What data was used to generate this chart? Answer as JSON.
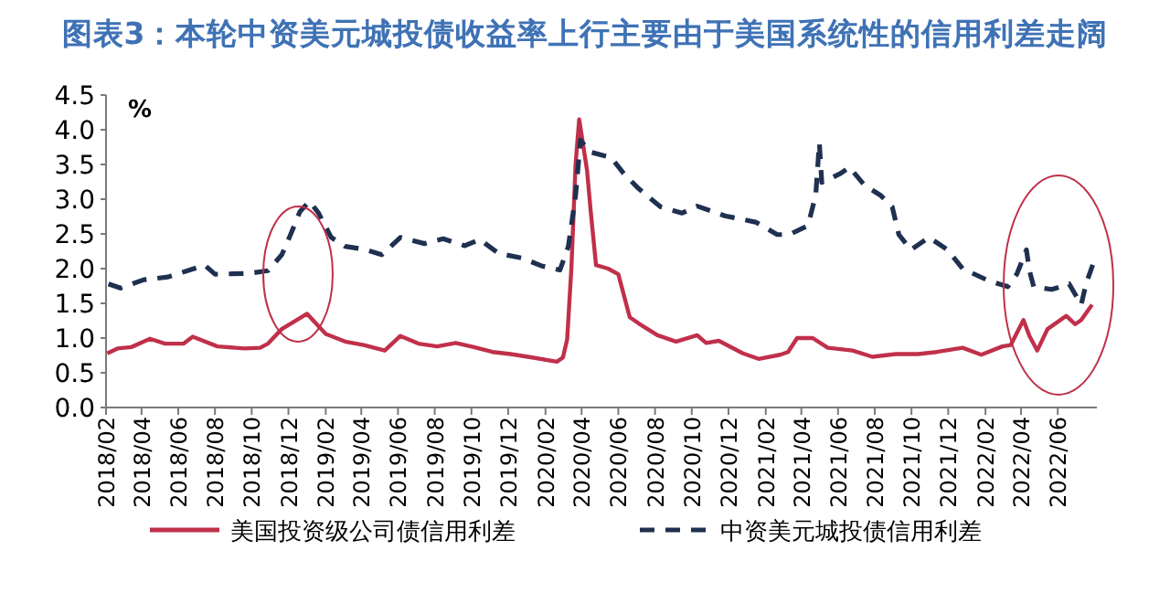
{
  "chart_data": {
    "type": "line",
    "title": "图表3：本轮中资美元城投债收益率上行主要由于美国系统性的信用利差走阔",
    "ylabel": "%",
    "xlim": [
      "2018-02-01",
      "2022-08-05"
    ],
    "ylim": [
      0,
      4.5
    ],
    "xticks": [
      {
        "value": "2018-02",
        "label": "2018/02"
      },
      {
        "value": "2018-04",
        "label": "2018/04"
      },
      {
        "value": "2018-06",
        "label": "2018/06"
      },
      {
        "value": "2018-08",
        "label": "2018/08"
      },
      {
        "value": "2018-10",
        "label": "2018/10"
      },
      {
        "value": "2018-12",
        "label": "2018/12"
      },
      {
        "value": "2019-02",
        "label": "2019/02"
      },
      {
        "value": "2019-04",
        "label": "2019/04"
      },
      {
        "value": "2019-06",
        "label": "2019/06"
      },
      {
        "value": "2019-08",
        "label": "2019/08"
      },
      {
        "value": "2019-10",
        "label": "2019/10"
      },
      {
        "value": "2019-12",
        "label": "2019/12"
      },
      {
        "value": "2020-02",
        "label": "2020/02"
      },
      {
        "value": "2020-04",
        "label": "2020/04"
      },
      {
        "value": "2020-06",
        "label": "2020/06"
      },
      {
        "value": "2020-08",
        "label": "2020/08"
      },
      {
        "value": "2020-10",
        "label": "2020/10"
      },
      {
        "value": "2020-12",
        "label": "2020/12"
      },
      {
        "value": "2021-02",
        "label": "2021/02"
      },
      {
        "value": "2021-04",
        "label": "2021/04"
      },
      {
        "value": "2021-06",
        "label": "2021/06"
      },
      {
        "value": "2021-08",
        "label": "2021/08"
      },
      {
        "value": "2021-10",
        "label": "2021/10"
      },
      {
        "value": "2021-12",
        "label": "2021/12"
      },
      {
        "value": "2022-02",
        "label": "2022/02"
      },
      {
        "value": "2022-04",
        "label": "2022/04"
      },
      {
        "value": "2022-06",
        "label": "2022/06"
      }
    ],
    "yticks": [
      {
        "value": 0,
        "label": "0.0"
      },
      {
        "value": 0.5,
        "label": "0.5"
      },
      {
        "value": 1,
        "label": "1.0"
      },
      {
        "value": 1.5,
        "label": "1.5"
      },
      {
        "value": 2,
        "label": "2.0"
      },
      {
        "value": 2.5,
        "label": "2.5"
      },
      {
        "value": 3,
        "label": "3.0"
      },
      {
        "value": 3.5,
        "label": "3.5"
      },
      {
        "value": 4,
        "label": "4.0"
      },
      {
        "value": 4.5,
        "label": "4.5"
      }
    ],
    "grid": false,
    "legend": "bottom",
    "series": [
      {
        "name": "美国投资级公司债信用利差",
        "color": "#c0304a",
        "line_style": "solid",
        "x": [
          "2018-02-03",
          "2018-02-20",
          "2018-03-15",
          "2018-04-05",
          "2018-04-15",
          "2018-05-10",
          "2018-06-10",
          "2018-06-25",
          "2018-08-05",
          "2018-09-20",
          "2018-10-15",
          "2018-10-28",
          "2018-11-20",
          "2019-01-01",
          "2019-02-01",
          "2019-03-05",
          "2019-04-05",
          "2019-05-10",
          "2019-06-05",
          "2019-07-05",
          "2019-08-05",
          "2019-09-05",
          "2019-10-05",
          "2019-11-05",
          "2019-12-05",
          "2020-01-10",
          "2020-02-20",
          "2020-03-01",
          "2020-03-08",
          "2020-03-15",
          "2020-03-22",
          "2020-03-28",
          "2020-04-10",
          "2020-04-16",
          "2020-04-25",
          "2020-05-15",
          "2020-06-01",
          "2020-06-20",
          "2020-07-05",
          "2020-08-05",
          "2020-09-05",
          "2020-10-10",
          "2020-10-25",
          "2020-11-15",
          "2020-12-25",
          "2021-01-20",
          "2021-02-25",
          "2021-03-10",
          "2021-03-25",
          "2021-04-20",
          "2021-05-15",
          "2021-06-25",
          "2021-07-28",
          "2021-09-05",
          "2021-10-12",
          "2021-11-12",
          "2021-12-25",
          "2022-01-25",
          "2022-03-01",
          "2022-03-15",
          "2022-04-05",
          "2022-04-15",
          "2022-04-28",
          "2022-05-15",
          "2022-06-15",
          "2022-06-30",
          "2022-07-10",
          "2022-07-28"
        ],
        "values": [
          0.78,
          0.85,
          0.87,
          0.95,
          0.99,
          0.92,
          0.92,
          1.02,
          0.88,
          0.85,
          0.86,
          0.92,
          1.13,
          1.35,
          1.06,
          0.95,
          0.9,
          0.82,
          1.03,
          0.92,
          0.88,
          0.93,
          0.87,
          0.8,
          0.77,
          0.72,
          0.66,
          0.72,
          0.98,
          2.0,
          3.5,
          4.15,
          3.42,
          2.84,
          2.05,
          2.0,
          1.92,
          1.3,
          1.21,
          1.04,
          0.95,
          1.04,
          0.93,
          0.96,
          0.78,
          0.7,
          0.76,
          0.8,
          1.0,
          1.0,
          0.86,
          0.82,
          0.73,
          0.77,
          0.77,
          0.8,
          0.86,
          0.76,
          0.88,
          0.9,
          1.26,
          1.03,
          0.82,
          1.13,
          1.32,
          1.2,
          1.26,
          1.48
        ]
      },
      {
        "name": "中资美元城投债信用利差",
        "color": "#1f3050",
        "line_style": "dashed",
        "x": [
          "2018-02-05",
          "2018-02-25",
          "2018-04-05",
          "2018-05-15",
          "2018-06-20",
          "2018-07-15",
          "2018-08-01",
          "2018-09-25",
          "2018-10-28",
          "2018-11-20",
          "2018-12-05",
          "2018-12-20",
          "2019-01-05",
          "2019-01-20",
          "2019-02-10",
          "2019-03-05",
          "2019-04-05",
          "2019-05-05",
          "2019-06-05",
          "2019-07-15",
          "2019-08-15",
          "2019-09-20",
          "2019-10-15",
          "2019-11-15",
          "2019-12-25",
          "2020-01-25",
          "2020-02-25",
          "2020-03-10",
          "2020-03-22",
          "2020-03-30",
          "2020-04-15",
          "2020-05-20",
          "2020-06-10",
          "2020-07-05",
          "2020-08-10",
          "2020-09-15",
          "2020-10-10",
          "2020-11-25",
          "2021-01-15",
          "2021-02-20",
          "2021-03-12",
          "2021-04-12",
          "2021-04-25",
          "2021-05-01",
          "2021-05-05",
          "2021-06-05",
          "2021-06-20",
          "2021-07-15",
          "2021-08-10",
          "2021-08-30",
          "2021-09-10",
          "2021-09-30",
          "2021-10-30",
          "2021-11-30",
          "2021-12-25",
          "2022-02-05",
          "2022-03-10",
          "2022-03-25",
          "2022-04-10",
          "2022-04-15",
          "2022-04-22",
          "2022-05-22",
          "2022-06-20",
          "2022-07-10",
          "2022-07-18",
          "2022-07-31"
        ],
        "values": [
          1.78,
          1.72,
          1.84,
          1.88,
          1.98,
          2.05,
          1.92,
          1.93,
          1.97,
          2.2,
          2.5,
          2.82,
          2.97,
          2.8,
          2.45,
          2.32,
          2.28,
          2.2,
          2.45,
          2.36,
          2.43,
          2.33,
          2.42,
          2.22,
          2.15,
          2.04,
          1.98,
          2.32,
          3.05,
          3.85,
          3.68,
          3.6,
          3.37,
          3.15,
          2.89,
          2.8,
          2.9,
          2.76,
          2.67,
          2.49,
          2.49,
          2.62,
          3.06,
          3.81,
          3.24,
          3.37,
          3.46,
          3.2,
          3.06,
          2.89,
          2.49,
          2.27,
          2.45,
          2.27,
          2.0,
          1.83,
          1.74,
          1.92,
          2.27,
          1.97,
          1.74,
          1.7,
          1.78,
          1.48,
          1.78,
          2.1
        ]
      }
    ]
  }
}
